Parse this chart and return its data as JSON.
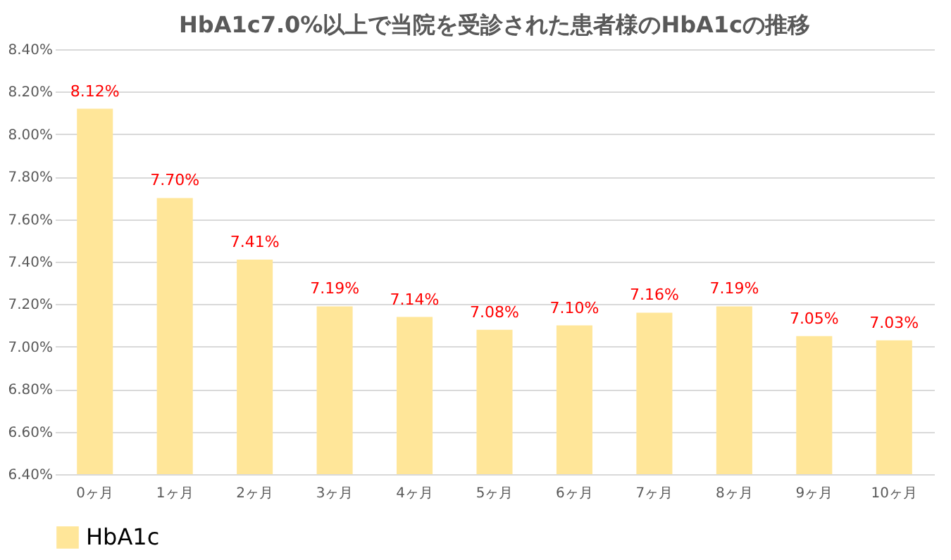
{
  "chart_data": {
    "type": "bar",
    "title": "HbA1c7.0%以上で当院を受診された患者様のHbA1cの推移",
    "categories": [
      "0ヶ月",
      "1ヶ月",
      "2ヶ月",
      "3ヶ月",
      "4ヶ月",
      "5ヶ月",
      "6ヶ月",
      "7ヶ月",
      "8ヶ月",
      "9ヶ月",
      "10ヶ月"
    ],
    "series": [
      {
        "name": "HbA1c",
        "color": "#ffe699",
        "values": [
          8.12,
          7.7,
          7.41,
          7.19,
          7.14,
          7.08,
          7.1,
          7.16,
          7.19,
          7.05,
          7.03
        ],
        "value_labels": [
          "8.12%",
          "7.70%",
          "7.41%",
          "7.19%",
          "7.14%",
          "7.08%",
          "7.10%",
          "7.16%",
          "7.19%",
          "7.05%",
          "7.03%"
        ]
      }
    ],
    "ylim": [
      6.4,
      8.4
    ],
    "yticks": [
      {
        "value": 6.4,
        "label": "6.40%"
      },
      {
        "value": 6.6,
        "label": "6.60%"
      },
      {
        "value": 6.8,
        "label": "6.80%"
      },
      {
        "value": 7.0,
        "label": "7.00%"
      },
      {
        "value": 7.2,
        "label": "7.20%"
      },
      {
        "value": 7.4,
        "label": "7.40%"
      },
      {
        "value": 7.6,
        "label": "7.60%"
      },
      {
        "value": 7.8,
        "label": "7.80%"
      },
      {
        "value": 8.0,
        "label": "8.00%"
      },
      {
        "value": 8.2,
        "label": "8.20%"
      },
      {
        "value": 8.4,
        "label": "8.40%"
      }
    ],
    "grid": "y",
    "legend": "bottom"
  }
}
